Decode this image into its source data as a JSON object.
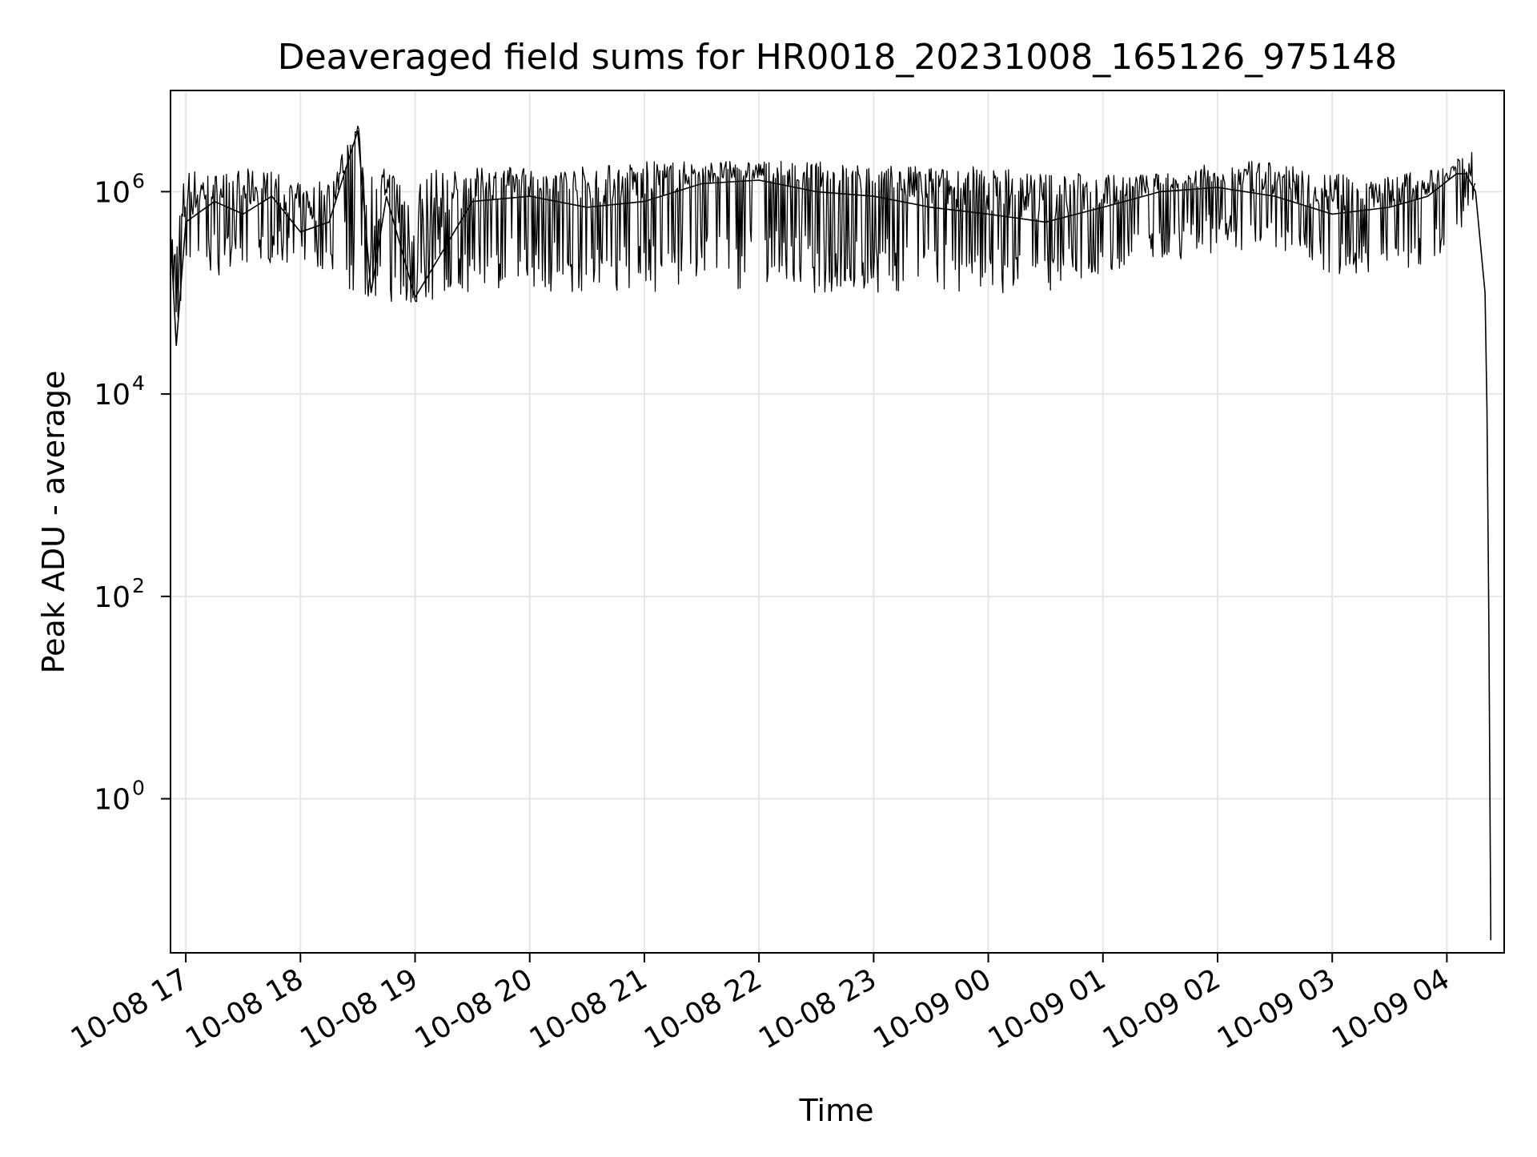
{
  "chart_data": {
    "type": "line",
    "title": "Deaveraged field sums for HR0018_20231008_165126_975148",
    "xlabel": "Time",
    "ylabel": "Peak ADU - average",
    "y_scale": "log",
    "y_range": [
      "3e-2",
      "1e7"
    ],
    "x_range": [
      "10-08 16:52",
      "10-09 04:30"
    ],
    "grid": true,
    "x_ticks": [
      "10-08 17",
      "10-08 18",
      "10-08 19",
      "10-08 20",
      "10-08 21",
      "10-08 22",
      "10-08 23",
      "10-09 00",
      "10-09 01",
      "10-09 02",
      "10-09 03",
      "10-09 04"
    ],
    "y_ticks": [
      {
        "base": "10",
        "exp": "0",
        "value": 1
      },
      {
        "base": "10",
        "exp": "2",
        "value": 100
      },
      {
        "base": "10",
        "exp": "4",
        "value": 10000
      },
      {
        "base": "10",
        "exp": "6",
        "value": 1000000
      }
    ],
    "series": [
      {
        "color": "#000000",
        "x": [
          "10-08 16:52",
          "10-08 16:55",
          "10-08 17:00",
          "10-08 17:15",
          "10-08 17:30",
          "10-08 17:45",
          "10-08 18:00",
          "10-08 18:15",
          "10-08 18:30",
          "10-08 18:37",
          "10-08 18:45",
          "10-08 19:00",
          "10-08 19:30",
          "10-08 20:00",
          "10-08 20:30",
          "10-08 21:00",
          "10-08 21:30",
          "10-08 22:00",
          "10-08 22:30",
          "10-08 23:00",
          "10-08 23:30",
          "10-09 00:00",
          "10-09 00:30",
          "10-09 01:00",
          "10-09 01:30",
          "10-09 02:00",
          "10-09 02:30",
          "10-09 03:00",
          "10-09 03:30",
          "10-09 03:50",
          "10-09 04:05",
          "10-09 04:10",
          "10-09 04:15",
          "10-09 04:20",
          "10-09 04:21",
          "10-09 04:22",
          "10-09 04:23"
        ],
        "y": [
          400000,
          30000,
          500000,
          800000,
          600000,
          900000,
          400000,
          500000,
          4000000,
          100000,
          900000,
          90000,
          800000,
          900000,
          700000,
          800000,
          1200000,
          1300000,
          1000000,
          900000,
          700000,
          600000,
          500000,
          700000,
          1000000,
          1100000,
          900000,
          600000,
          700000,
          900000,
          1500000,
          1500000,
          1000000,
          100000,
          7000,
          50,
          0.04
        ],
        "band_lo": [
          300000,
          30000,
          200000,
          150000,
          150000,
          200000,
          200000,
          150000,
          90000,
          90000,
          80000,
          80000,
          100000,
          100000,
          100000,
          100000,
          90000,
          90000,
          100000,
          100000,
          100000,
          100000,
          100000,
          150000,
          200000,
          250000,
          200000,
          150000,
          150000,
          200000,
          300000,
          500000,
          700000,
          100000,
          7000,
          50,
          0.04
        ],
        "band_hi": [
          600000,
          600000,
          1800000,
          1500000,
          1700000,
          1600000,
          1200000,
          1500000,
          4500000,
          1800000,
          1700000,
          1700000,
          1700000,
          1800000,
          1800000,
          2000000,
          2000000,
          2000000,
          2000000,
          1800000,
          1800000,
          1800000,
          1600000,
          1500000,
          1500000,
          2000000,
          2000000,
          1500000,
          1500000,
          1600000,
          2000000,
          4000000,
          1800000,
          1000000,
          7000,
          50,
          0.04
        ]
      }
    ]
  }
}
